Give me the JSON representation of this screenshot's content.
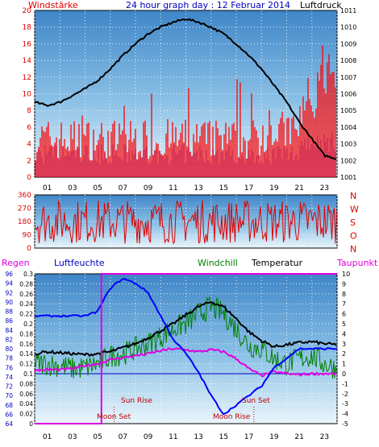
{
  "chart_data": [
    {
      "type": "line",
      "title": "24 hour graph day : 12 Februar 2014",
      "left_label": "Windstärke",
      "right_label": "Luftdruck",
      "left_ticks": [
        "0",
        "2",
        "4",
        "6",
        "8",
        "10",
        "12",
        "14",
        "16",
        "18",
        "20"
      ],
      "right_ticks": [
        "1001",
        "1002",
        "1003",
        "1004",
        "1005",
        "1006",
        "1007",
        "1008",
        "1009",
        "1010",
        "1011"
      ],
      "x_ticks": [
        "01",
        "03",
        "05",
        "07",
        "09",
        "11",
        "13",
        "15",
        "17",
        "19",
        "21",
        "23"
      ],
      "ylim_left": [
        0,
        20
      ],
      "ylim_right": [
        1001,
        1011
      ],
      "series": [
        {
          "name": "Luftdruck",
          "color": "#000000",
          "x": [
            0,
            1,
            2,
            3,
            4,
            5,
            6,
            7,
            8,
            9,
            10,
            11,
            12,
            13,
            14,
            15,
            16,
            17,
            18,
            19,
            20,
            21,
            22,
            23,
            24
          ],
          "values": [
            1005.5,
            1005.3,
            1005.5,
            1005.9,
            1006.3,
            1006.8,
            1007.5,
            1008.3,
            1009.0,
            1009.6,
            1010.0,
            1010.3,
            1010.5,
            1010.3,
            1010.0,
            1009.6,
            1009.0,
            1008.3,
            1007.5,
            1006.5,
            1005.5,
            1004.3,
            1003.3,
            1002.3,
            1002.1
          ]
        }
      ]
    },
    {
      "type": "scatter",
      "title": "",
      "left_ticks": [
        "0",
        "90",
        "180",
        "270",
        "360"
      ],
      "right_labels": [
        "N",
        "W",
        "S",
        "O",
        "N"
      ],
      "ylim": [
        0,
        360
      ]
    },
    {
      "type": "line",
      "labels": {
        "regen": "Regen",
        "luftfeuchte": "Luftfeuchte",
        "windchill": "Windchill",
        "temperatur": "Temperatur",
        "taupunkt": "Taupunkt"
      },
      "humidity_ticks": [
        "64",
        "66",
        "68",
        "70",
        "72",
        "74",
        "76",
        "78",
        "80",
        "82",
        "84",
        "86",
        "88",
        "90",
        "92",
        "94",
        "96"
      ],
      "rain_ticks": [
        "0",
        "0.02",
        "0.04",
        "0.06",
        "0.08",
        "0.1",
        "0.12",
        "0.14",
        "0.16",
        "0.18",
        "0.2",
        "0.22",
        "0.24",
        "0.26",
        "0.28",
        "0.3"
      ],
      "temp_ticks": [
        "10",
        "9",
        "8",
        "7",
        "6",
        "5",
        "4",
        "3",
        "2",
        "1",
        "0",
        "-1",
        "-2",
        "-3",
        "-4",
        "-5"
      ],
      "x_ticks": [
        "01",
        "03",
        "05",
        "07",
        "09",
        "11",
        "13",
        "15",
        "17",
        "19",
        "21",
        "23"
      ],
      "ylim_temp": [
        -5,
        10
      ],
      "ylim_humidity": [
        64,
        96
      ],
      "ylim_rain": [
        0,
        0.3
      ],
      "annotations": [
        "Sun Rise",
        "Sun Set",
        "Moon Set",
        "Moon Rise"
      ],
      "series": [
        {
          "name": "Temperatur",
          "color": "#000000",
          "x": [
            0,
            1,
            2,
            3,
            4,
            5,
            6,
            7,
            8,
            9,
            10,
            11,
            12,
            13,
            14,
            15,
            16,
            17,
            18,
            19,
            20,
            21,
            22,
            23,
            24
          ],
          "values": [
            2.0,
            2.2,
            2.1,
            2.0,
            1.9,
            2.0,
            2.2,
            2.6,
            3.0,
            3.6,
            4.3,
            5.0,
            5.9,
            6.7,
            7.2,
            6.7,
            5.5,
            4.2,
            3.3,
            2.7,
            2.9,
            3.1,
            3.2,
            3.0,
            2.9
          ]
        },
        {
          "name": "Windchill",
          "color": "#008000",
          "x": [
            0,
            1,
            2,
            3,
            4,
            5,
            6,
            7,
            8,
            9,
            10,
            11,
            12,
            13,
            14,
            15,
            16,
            17,
            18,
            19,
            20,
            21,
            22,
            23,
            24
          ],
          "values": [
            1.0,
            1.0,
            0.8,
            0.5,
            0.6,
            1.0,
            1.8,
            2.0,
            2.5,
            3.0,
            3.7,
            4.5,
            5.0,
            6.0,
            6.7,
            6.0,
            4.5,
            2.8,
            2.5,
            1.5,
            1.0,
            1.5,
            1.8,
            1.0,
            0.5
          ]
        },
        {
          "name": "Taupunkt",
          "color": "#e000e0",
          "x": [
            0,
            1,
            2,
            3,
            4,
            5,
            6,
            7,
            8,
            9,
            10,
            11,
            12,
            13,
            14,
            15,
            16,
            17,
            18,
            19,
            20,
            21,
            22,
            23,
            24
          ],
          "values": [
            0.3,
            0.4,
            0.4,
            0.5,
            0.8,
            1.0,
            1.4,
            1.6,
            1.8,
            2.0,
            2.3,
            2.5,
            2.4,
            2.2,
            2.4,
            2.2,
            1.5,
            0.5,
            -0.2,
            0.2,
            0.0,
            -0.1,
            0.0,
            0.0,
            0.0
          ]
        },
        {
          "name": "Luftfeuchte",
          "color": "#0000ff",
          "x": [
            0,
            1,
            2,
            3,
            4,
            5,
            6,
            7,
            8,
            9,
            10,
            11,
            12,
            13,
            14,
            15,
            16,
            17,
            18,
            19,
            20,
            21,
            22,
            23,
            24
          ],
          "values": [
            87,
            87,
            87,
            87,
            87,
            88,
            93,
            95,
            94,
            92,
            87,
            82,
            79,
            75,
            70,
            66,
            68,
            70,
            72,
            76,
            78,
            80,
            80,
            80,
            80
          ]
        },
        {
          "name": "Regen",
          "color": "#e000e0",
          "x": [
            0,
            5.3,
            5.3,
            24
          ],
          "values": [
            0,
            0,
            0.3,
            0.3
          ]
        }
      ]
    }
  ]
}
